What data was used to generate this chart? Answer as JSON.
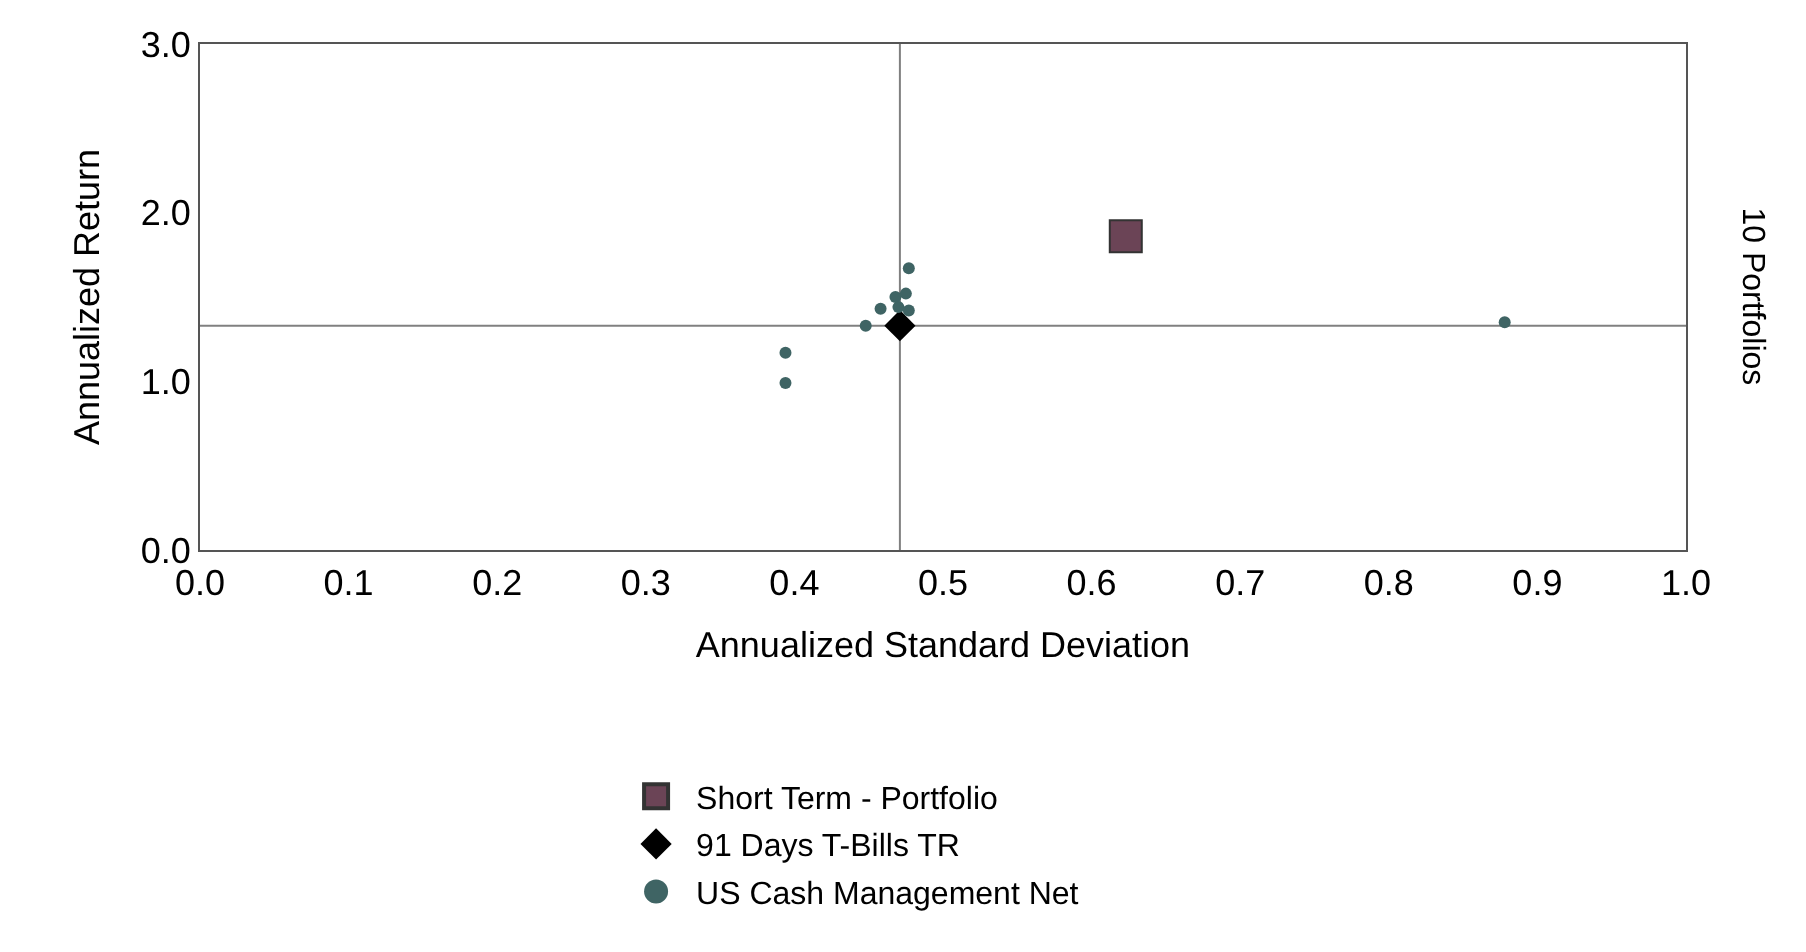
{
  "chart_data": {
    "type": "scatter",
    "xlabel": "Annualized Standard Deviation",
    "ylabel": "Annualized Return",
    "y2label": "10 Portfolios",
    "xlim": [
      0,
      1.0
    ],
    "xticks": [
      {
        "value": 0,
        "label": "0.0"
      },
      0.1,
      0.2,
      0.3,
      0.4,
      0.5,
      0.6,
      0.7,
      0.8,
      0.9,
      {
        "value": 1,
        "label": "1.0"
      }
    ],
    "ylim": [
      0,
      3.0
    ],
    "yticks": [
      {
        "value": 0,
        "label": "0.0"
      },
      {
        "value": 1,
        "label": "1.0"
      },
      {
        "value": 2,
        "label": "2.0"
      },
      {
        "value": 3,
        "label": "3.0"
      }
    ],
    "grid": false,
    "legend": "bottom",
    "ref_lines": [
      {
        "axis": "x",
        "value": 0.471,
        "color": "#808080"
      },
      {
        "axis": "y",
        "value": 1.33,
        "color": "#808080"
      }
    ],
    "series": [
      {
        "name": "Short Term - Portfolio",
        "color": "#6b4456",
        "marker": "square",
        "x": [
          0.623
        ],
        "values": [
          1.86
        ]
      },
      {
        "name": "91 Days T-Bills TR",
        "color": "#000000",
        "marker": "diamond",
        "x": [
          0.471
        ],
        "values": [
          1.33
        ]
      },
      {
        "name": "US Cash Management Net",
        "color": "#3f6464",
        "marker": "circle",
        "x": [
          0.477,
          0.475,
          0.468,
          0.458,
          0.47,
          0.477,
          0.448,
          0.394,
          0.394,
          0.878
        ],
        "values": [
          1.67,
          1.52,
          1.5,
          1.43,
          1.44,
          1.42,
          1.33,
          1.17,
          0.99,
          1.35
        ]
      }
    ]
  }
}
